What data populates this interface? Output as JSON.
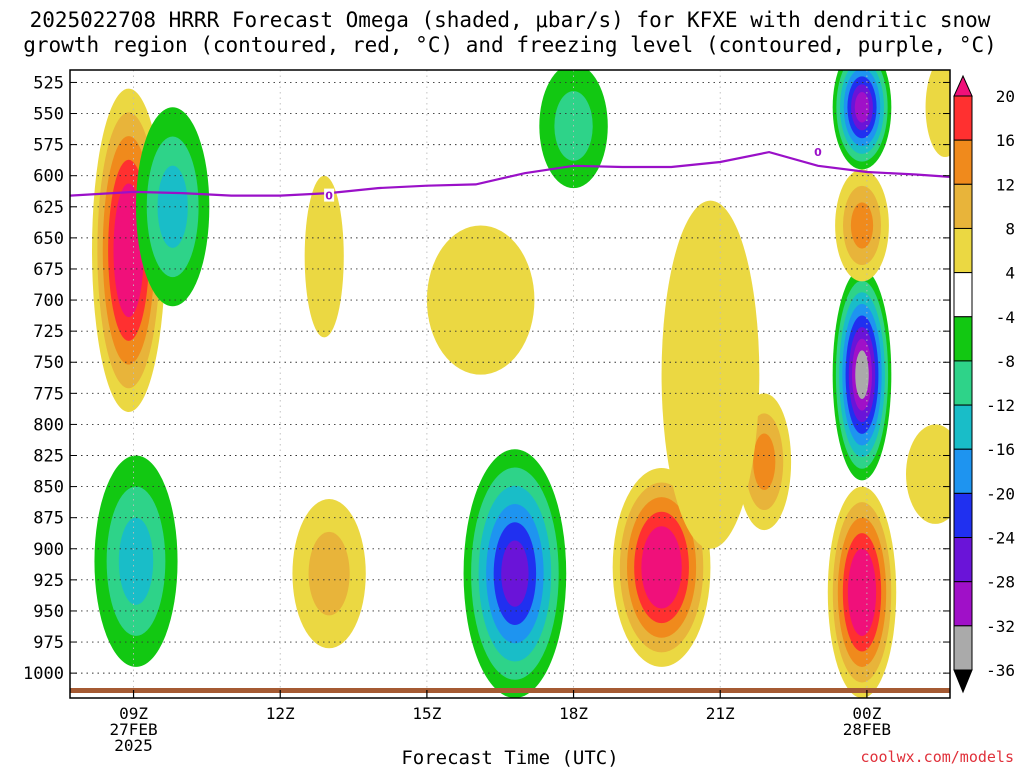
{
  "title_line1": "2025022708 HRRR Forecast Omega (shaded, μbar/s) for KFXE with dendritic snow",
  "title_line2": "growth region (contoured, red, °C) and freezing level (contoured, purple, °C)",
  "credit": "coolwx.com/models",
  "chart_data": {
    "type": "time-height contour",
    "xlabel": "Forecast Time (UTC)",
    "ylabel": "",
    "x_range_hours_after_09z": [
      -1.3,
      16.7
    ],
    "y_range_mb": [
      1020,
      515
    ],
    "y_ticks": [
      525,
      550,
      575,
      600,
      625,
      650,
      675,
      700,
      725,
      750,
      775,
      800,
      825,
      850,
      875,
      900,
      925,
      950,
      975,
      1000
    ],
    "x_ticks": [
      {
        "line1": "09Z",
        "line2": "27FEB",
        "line3": "2025"
      },
      {
        "line1": "12Z",
        "line2": "",
        "line3": ""
      },
      {
        "line1": "15Z",
        "line2": "",
        "line3": ""
      },
      {
        "line1": "18Z",
        "line2": "",
        "line3": ""
      },
      {
        "line1": "21Z",
        "line2": "",
        "line3": ""
      },
      {
        "line1": "00Z",
        "line2": "28FEB",
        "line3": ""
      }
    ],
    "colorbar": {
      "labels": [
        "20",
        "16",
        "12",
        "8",
        "4",
        "-4",
        "-8",
        "-12",
        "-16",
        "-20",
        "-24",
        "-28",
        "-32",
        "-36"
      ],
      "colors": [
        "#f0107a",
        "#ff3030",
        "#f08a1c",
        "#e8b43a",
        "#ebd842",
        "#ffffff",
        "#12c812",
        "#2ed389",
        "#19bdc8",
        "#1e94f0",
        "#2030f0",
        "#6a14d8",
        "#a010c8",
        "#aaaaaa",
        "#000000"
      ]
    },
    "freezing_level": {
      "label": "0",
      "x_hours": [
        -1.3,
        0,
        1,
        2,
        3,
        4,
        5,
        6,
        7,
        8,
        9,
        10,
        11,
        12,
        13,
        14,
        15,
        16,
        16.7
      ],
      "pressure_mb": [
        616,
        613,
        614,
        616,
        616,
        614,
        610,
        608,
        607,
        598,
        592,
        593,
        593,
        589,
        581,
        592,
        597,
        599,
        601
      ],
      "label_points": [
        {
          "x": 4,
          "p": 616
        },
        {
          "x": 14,
          "p": 581
        }
      ]
    },
    "omega_features": [
      {
        "x": -0.1,
        "p": 660,
        "rx": 0.75,
        "ry": 130,
        "peak": 24,
        "note": "strong rising, 09Z mid-levels"
      },
      {
        "x": 0.8,
        "p": 625,
        "rx": 0.75,
        "ry": 80,
        "peak": -14
      },
      {
        "x": 0.05,
        "p": 910,
        "rx": 0.85,
        "ry": 85,
        "peak": -15
      },
      {
        "x": 4.0,
        "p": 920,
        "rx": 0.75,
        "ry": 60,
        "peak": 8
      },
      {
        "x": 7.8,
        "p": 920,
        "rx": 1.05,
        "ry": 100,
        "peak": -26
      },
      {
        "x": 10.8,
        "p": 915,
        "rx": 1.0,
        "ry": 80,
        "peak": 24
      },
      {
        "x": 12.9,
        "p": 830,
        "rx": 0.55,
        "ry": 55,
        "peak": 14
      },
      {
        "x": 14.9,
        "p": 935,
        "rx": 0.7,
        "ry": 85,
        "peak": 24
      },
      {
        "x": 14.9,
        "p": 760,
        "rx": 0.6,
        "ry": 85,
        "peak": -33
      },
      {
        "x": 14.9,
        "p": 545,
        "rx": 0.6,
        "ry": 50,
        "peak": -28
      },
      {
        "x": 14.9,
        "p": 640,
        "rx": 0.55,
        "ry": 45,
        "peak": 14
      },
      {
        "x": 9.0,
        "p": 560,
        "rx": 0.7,
        "ry": 50,
        "peak": -8
      },
      {
        "x": 7.1,
        "p": 700,
        "rx": 1.1,
        "ry": 60,
        "peak": 6
      },
      {
        "x": 3.9,
        "p": 665,
        "rx": 0.4,
        "ry": 65,
        "peak": 5
      },
      {
        "x": 11.8,
        "p": 760,
        "rx": 1.0,
        "ry": 140,
        "peak": 6
      },
      {
        "x": 16.4,
        "p": 840,
        "rx": 0.6,
        "ry": 40,
        "peak": 5
      },
      {
        "x": 16.6,
        "p": 545,
        "rx": 0.4,
        "ry": 40,
        "peak": 5
      }
    ]
  }
}
